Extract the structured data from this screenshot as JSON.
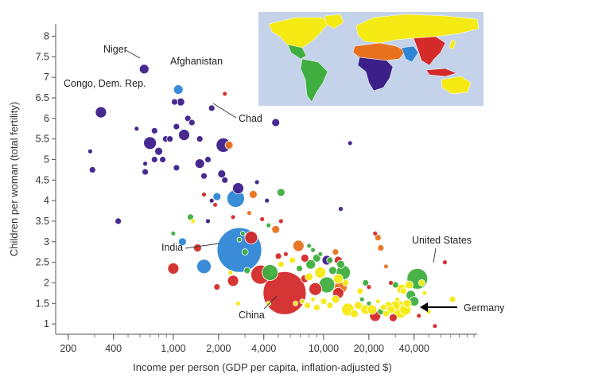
{
  "chart_data": {
    "type": "scatter",
    "title": "",
    "xlabel": "Income per person (GDP per capita, inflation-adjusted $)",
    "ylabel": "Children per woman (total fertility)",
    "xscale": "log",
    "xlim": [
      165,
      105000
    ],
    "ylim": [
      0.75,
      8.3
    ],
    "x_ticks": [
      200,
      400,
      1000,
      2000,
      4000,
      10000,
      20000,
      40000
    ],
    "x_tick_labels": [
      "200",
      "400",
      "1,000",
      "2,000",
      "4,000",
      "10,000",
      "20,000",
      "40,000"
    ],
    "y_ticks": [
      1,
      1.5,
      2,
      2.5,
      3,
      3.5,
      4,
      4.5,
      5,
      5.5,
      6,
      6.5,
      7,
      7.5,
      8
    ],
    "y_tick_labels": [
      "1",
      "1.5",
      "2",
      "2.5",
      "3",
      "3.5",
      "4",
      "4.5",
      "5",
      "5.5",
      "6",
      "6.5",
      "7",
      "7.5",
      "8"
    ],
    "grid": false,
    "legend": "inset world map (top-right) colors countries by region",
    "region_colors": {
      "purple": "#3d1f8a",
      "blue": "#2f86d6",
      "red": "#d42a2a",
      "orange": "#e8711e",
      "green": "#3fae3f",
      "yellow": "#f5ea14"
    },
    "map_colors": {
      "ocean": "#c4d3ea"
    },
    "annotations": [
      {
        "text": "Niger",
        "x": 640,
        "y": 7.2
      },
      {
        "text": "Afghanistan",
        "x": 1080,
        "y": 6.7
      },
      {
        "text": "Congo, Dem. Rep.",
        "x": 330,
        "y": 6.15
      },
      {
        "text": "Chad",
        "x": 1800,
        "y": 6.25
      },
      {
        "text": "India",
        "x": 2750,
        "y": 2.8
      },
      {
        "text": "China",
        "x": 5500,
        "y": 1.75
      },
      {
        "text": "United States",
        "x": 42000,
        "y": 2.1
      },
      {
        "text": "Germany",
        "x": 35000,
        "y": 1.35
      }
    ],
    "points": [
      {
        "x": 640,
        "y": 7.2,
        "r": 6,
        "c": "purple"
      },
      {
        "x": 1080,
        "y": 6.7,
        "r": 6,
        "c": "blue"
      },
      {
        "x": 330,
        "y": 6.15,
        "r": 7,
        "c": "purple"
      },
      {
        "x": 1800,
        "y": 6.25,
        "r": 4,
        "c": "purple"
      },
      {
        "x": 4800,
        "y": 5.9,
        "r": 5,
        "c": "purple"
      },
      {
        "x": 2200,
        "y": 6.6,
        "r": 3,
        "c": "red"
      },
      {
        "x": 1020,
        "y": 6.4,
        "r": 4,
        "c": "purple"
      },
      {
        "x": 1120,
        "y": 6.4,
        "r": 5,
        "c": "purple"
      },
      {
        "x": 1250,
        "y": 6.0,
        "r": 4,
        "c": "purple"
      },
      {
        "x": 1330,
        "y": 5.9,
        "r": 4,
        "c": "purple"
      },
      {
        "x": 1050,
        "y": 5.8,
        "r": 4,
        "c": "purple"
      },
      {
        "x": 570,
        "y": 5.75,
        "r": 3,
        "c": "purple"
      },
      {
        "x": 750,
        "y": 5.7,
        "r": 4,
        "c": "purple"
      },
      {
        "x": 700,
        "y": 5.4,
        "r": 8,
        "c": "purple"
      },
      {
        "x": 890,
        "y": 5.5,
        "r": 4,
        "c": "purple"
      },
      {
        "x": 950,
        "y": 5.5,
        "r": 4,
        "c": "purple"
      },
      {
        "x": 1180,
        "y": 5.6,
        "r": 7,
        "c": "purple"
      },
      {
        "x": 1500,
        "y": 5.5,
        "r": 4,
        "c": "purple"
      },
      {
        "x": 2150,
        "y": 5.35,
        "r": 9,
        "c": "purple"
      },
      {
        "x": 2350,
        "y": 5.35,
        "r": 5,
        "c": "orange"
      },
      {
        "x": 800,
        "y": 5.2,
        "r": 5,
        "c": "purple"
      },
      {
        "x": 750,
        "y": 5.0,
        "r": 4,
        "c": "purple"
      },
      {
        "x": 850,
        "y": 5.0,
        "r": 4,
        "c": "purple"
      },
      {
        "x": 650,
        "y": 4.9,
        "r": 3,
        "c": "purple"
      },
      {
        "x": 1500,
        "y": 4.9,
        "r": 6,
        "c": "purple"
      },
      {
        "x": 1700,
        "y": 5.0,
        "r": 4,
        "c": "purple"
      },
      {
        "x": 1050,
        "y": 4.8,
        "r": 4,
        "c": "purple"
      },
      {
        "x": 650,
        "y": 4.7,
        "r": 4,
        "c": "purple"
      },
      {
        "x": 1600,
        "y": 4.6,
        "r": 4,
        "c": "purple"
      },
      {
        "x": 2100,
        "y": 4.65,
        "r": 5,
        "c": "purple"
      },
      {
        "x": 2200,
        "y": 4.5,
        "r": 4,
        "c": "purple"
      },
      {
        "x": 280,
        "y": 5.2,
        "r": 3,
        "c": "purple"
      },
      {
        "x": 290,
        "y": 4.75,
        "r": 4,
        "c": "purple"
      },
      {
        "x": 2700,
        "y": 4.3,
        "r": 7,
        "c": "purple"
      },
      {
        "x": 2600,
        "y": 4.05,
        "r": 11,
        "c": "blue"
      },
      {
        "x": 1950,
        "y": 4.1,
        "r": 5,
        "c": "blue"
      },
      {
        "x": 3600,
        "y": 4.45,
        "r": 3,
        "c": "purple"
      },
      {
        "x": 3400,
        "y": 4.15,
        "r": 5,
        "c": "orange"
      },
      {
        "x": 1800,
        "y": 4.0,
        "r": 3,
        "c": "purple"
      },
      {
        "x": 1600,
        "y": 4.15,
        "r": 3,
        "c": "red"
      },
      {
        "x": 4200,
        "y": 4.0,
        "r": 3,
        "c": "purple"
      },
      {
        "x": 5200,
        "y": 4.2,
        "r": 5,
        "c": "green"
      },
      {
        "x": 1000,
        "y": 3.2,
        "r": 3,
        "c": "green"
      },
      {
        "x": 1300,
        "y": 3.6,
        "r": 4,
        "c": "green"
      },
      {
        "x": 1350,
        "y": 3.5,
        "r": 3,
        "c": "yellow"
      },
      {
        "x": 430,
        "y": 3.5,
        "r": 4,
        "c": "purple"
      },
      {
        "x": 1700,
        "y": 3.5,
        "r": 3,
        "c": "purple"
      },
      {
        "x": 1900,
        "y": 3.9,
        "r": 3,
        "c": "red"
      },
      {
        "x": 2500,
        "y": 3.6,
        "r": 3,
        "c": "red"
      },
      {
        "x": 3200,
        "y": 3.7,
        "r": 3,
        "c": "orange"
      },
      {
        "x": 3900,
        "y": 3.55,
        "r": 3,
        "c": "red"
      },
      {
        "x": 4300,
        "y": 3.4,
        "r": 3,
        "c": "green"
      },
      {
        "x": 4800,
        "y": 3.3,
        "r": 5,
        "c": "orange"
      },
      {
        "x": 5200,
        "y": 3.5,
        "r": 3,
        "c": "red"
      },
      {
        "x": 2900,
        "y": 3.2,
        "r": 3,
        "c": "green"
      },
      {
        "x": 13000,
        "y": 3.8,
        "r": 3,
        "c": "purple"
      },
      {
        "x": 15000,
        "y": 5.4,
        "r": 3,
        "c": "purple"
      },
      {
        "x": 1150,
        "y": 3.0,
        "r": 5,
        "c": "blue"
      },
      {
        "x": 2750,
        "y": 2.8,
        "r": 28,
        "c": "blue"
      },
      {
        "x": 1450,
        "y": 2.85,
        "r": 5,
        "c": "red"
      },
      {
        "x": 3300,
        "y": 3.1,
        "r": 8,
        "c": "red"
      },
      {
        "x": 6800,
        "y": 2.9,
        "r": 7,
        "c": "orange"
      },
      {
        "x": 8000,
        "y": 2.9,
        "r": 3,
        "c": "green"
      },
      {
        "x": 8500,
        "y": 2.8,
        "r": 3,
        "c": "green"
      },
      {
        "x": 9500,
        "y": 2.7,
        "r": 3,
        "c": "green"
      },
      {
        "x": 3000,
        "y": 2.75,
        "r": 4,
        "c": "green"
      },
      {
        "x": 12000,
        "y": 2.75,
        "r": 4,
        "c": "orange"
      },
      {
        "x": 11000,
        "y": 2.55,
        "r": 4,
        "c": "green"
      },
      {
        "x": 10500,
        "y": 2.55,
        "r": 6,
        "c": "purple"
      },
      {
        "x": 9000,
        "y": 2.6,
        "r": 5,
        "c": "green"
      },
      {
        "x": 8200,
        "y": 2.45,
        "r": 6,
        "c": "green"
      },
      {
        "x": 7500,
        "y": 2.6,
        "r": 5,
        "c": "red"
      },
      {
        "x": 6200,
        "y": 2.55,
        "r": 4,
        "c": "yellow"
      },
      {
        "x": 5000,
        "y": 2.65,
        "r": 4,
        "c": "red"
      },
      {
        "x": 5600,
        "y": 2.7,
        "r": 3,
        "c": "red"
      },
      {
        "x": 12500,
        "y": 2.55,
        "r": 5,
        "c": "red"
      },
      {
        "x": 13000,
        "y": 2.45,
        "r": 5,
        "c": "green"
      },
      {
        "x": 13500,
        "y": 2.25,
        "r": 9,
        "c": "green"
      },
      {
        "x": 11500,
        "y": 2.3,
        "r": 5,
        "c": "green"
      },
      {
        "x": 12500,
        "y": 2.1,
        "r": 6,
        "c": "yellow"
      },
      {
        "x": 9500,
        "y": 2.25,
        "r": 7,
        "c": "yellow"
      },
      {
        "x": 10500,
        "y": 1.95,
        "r": 10,
        "c": "green"
      },
      {
        "x": 12500,
        "y": 1.75,
        "r": 7,
        "c": "red"
      },
      {
        "x": 13000,
        "y": 1.9,
        "r": 8,
        "c": "orange"
      },
      {
        "x": 14000,
        "y": 2.0,
        "r": 4,
        "c": "yellow"
      },
      {
        "x": 8800,
        "y": 1.85,
        "r": 8,
        "c": "red"
      },
      {
        "x": 7500,
        "y": 2.1,
        "r": 5,
        "c": "red"
      },
      {
        "x": 8000,
        "y": 2.15,
        "r": 5,
        "c": "yellow"
      },
      {
        "x": 6900,
        "y": 2.35,
        "r": 4,
        "c": "green"
      },
      {
        "x": 5200,
        "y": 2.45,
        "r": 4,
        "c": "yellow"
      },
      {
        "x": 3100,
        "y": 2.3,
        "r": 4,
        "c": "green"
      },
      {
        "x": 3800,
        "y": 2.2,
        "r": 12,
        "c": "red"
      },
      {
        "x": 4400,
        "y": 2.25,
        "r": 10,
        "c": "green"
      },
      {
        "x": 2500,
        "y": 2.05,
        "r": 7,
        "c": "red"
      },
      {
        "x": 1600,
        "y": 2.4,
        "r": 9,
        "c": "blue"
      },
      {
        "x": 1000,
        "y": 2.35,
        "r": 7,
        "c": "red"
      },
      {
        "x": 1950,
        "y": 1.9,
        "r": 4,
        "c": "red"
      },
      {
        "x": 2700,
        "y": 1.5,
        "r": 3,
        "c": "yellow"
      },
      {
        "x": 5500,
        "y": 1.75,
        "r": 27,
        "c": "red"
      },
      {
        "x": 6500,
        "y": 1.5,
        "r": 3,
        "c": "yellow"
      },
      {
        "x": 7200,
        "y": 1.55,
        "r": 3,
        "c": "yellow"
      },
      {
        "x": 7800,
        "y": 1.45,
        "r": 4,
        "c": "yellow"
      },
      {
        "x": 8500,
        "y": 1.6,
        "r": 3,
        "c": "yellow"
      },
      {
        "x": 9000,
        "y": 1.4,
        "r": 4,
        "c": "yellow"
      },
      {
        "x": 10000,
        "y": 1.55,
        "r": 4,
        "c": "yellow"
      },
      {
        "x": 11000,
        "y": 1.45,
        "r": 4,
        "c": "yellow"
      },
      {
        "x": 12000,
        "y": 1.6,
        "r": 5,
        "c": "yellow"
      },
      {
        "x": 14500,
        "y": 1.35,
        "r": 8,
        "c": "yellow"
      },
      {
        "x": 16000,
        "y": 1.25,
        "r": 5,
        "c": "yellow"
      },
      {
        "x": 17000,
        "y": 1.45,
        "r": 5,
        "c": "yellow"
      },
      {
        "x": 17500,
        "y": 1.8,
        "r": 4,
        "c": "yellow"
      },
      {
        "x": 18000,
        "y": 1.6,
        "r": 3,
        "c": "green"
      },
      {
        "x": 19000,
        "y": 1.35,
        "r": 6,
        "c": "yellow"
      },
      {
        "x": 20000,
        "y": 1.5,
        "r": 3,
        "c": "green"
      },
      {
        "x": 21000,
        "y": 1.35,
        "r": 6,
        "c": "yellow"
      },
      {
        "x": 22000,
        "y": 1.2,
        "r": 7,
        "c": "red"
      },
      {
        "x": 23000,
        "y": 1.55,
        "r": 3,
        "c": "yellow"
      },
      {
        "x": 24000,
        "y": 1.3,
        "r": 4,
        "c": "green"
      },
      {
        "x": 25000,
        "y": 1.4,
        "r": 4,
        "c": "yellow"
      },
      {
        "x": 26000,
        "y": 1.25,
        "r": 4,
        "c": "yellow"
      },
      {
        "x": 27000,
        "y": 1.45,
        "r": 5,
        "c": "yellow"
      },
      {
        "x": 28000,
        "y": 1.35,
        "r": 5,
        "c": "yellow"
      },
      {
        "x": 29000,
        "y": 1.15,
        "r": 5,
        "c": "red"
      },
      {
        "x": 30000,
        "y": 1.45,
        "r": 6,
        "c": "yellow"
      },
      {
        "x": 31000,
        "y": 1.6,
        "r": 3,
        "c": "yellow"
      },
      {
        "x": 32000,
        "y": 1.35,
        "r": 11,
        "c": "yellow"
      },
      {
        "x": 33000,
        "y": 1.85,
        "r": 6,
        "c": "yellow"
      },
      {
        "x": 34000,
        "y": 1.8,
        "r": 4,
        "c": "yellow"
      },
      {
        "x": 35000,
        "y": 1.35,
        "r": 7,
        "c": "yellow"
      },
      {
        "x": 36000,
        "y": 1.5,
        "r": 5,
        "c": "yellow"
      },
      {
        "x": 37000,
        "y": 1.95,
        "r": 5,
        "c": "yellow"
      },
      {
        "x": 38000,
        "y": 1.7,
        "r": 6,
        "c": "green"
      },
      {
        "x": 40000,
        "y": 1.55,
        "r": 6,
        "c": "green"
      },
      {
        "x": 42000,
        "y": 2.1,
        "r": 13,
        "c": "green"
      },
      {
        "x": 45000,
        "y": 2.0,
        "r": 4,
        "c": "yellow"
      },
      {
        "x": 47000,
        "y": 1.75,
        "r": 3,
        "c": "yellow"
      },
      {
        "x": 43000,
        "y": 1.2,
        "r": 3,
        "c": "red"
      },
      {
        "x": 50000,
        "y": 1.3,
        "r": 3,
        "c": "yellow"
      },
      {
        "x": 55000,
        "y": 0.95,
        "r": 3,
        "c": "red"
      },
      {
        "x": 64000,
        "y": 2.5,
        "r": 3,
        "c": "red"
      },
      {
        "x": 72000,
        "y": 1.6,
        "r": 4,
        "c": "yellow"
      },
      {
        "x": 24000,
        "y": 2.85,
        "r": 4,
        "c": "orange"
      },
      {
        "x": 26000,
        "y": 2.4,
        "r": 3,
        "c": "orange"
      },
      {
        "x": 28000,
        "y": 2.0,
        "r": 3,
        "c": "red"
      },
      {
        "x": 30000,
        "y": 1.95,
        "r": 4,
        "c": "green"
      },
      {
        "x": 22000,
        "y": 3.2,
        "r": 3,
        "c": "red"
      },
      {
        "x": 23000,
        "y": 3.1,
        "r": 4,
        "c": "orange"
      },
      {
        "x": 19000,
        "y": 2.0,
        "r": 4,
        "c": "green"
      },
      {
        "x": 20000,
        "y": 1.9,
        "r": 3,
        "c": "red"
      },
      {
        "x": 4300,
        "y": 1.5,
        "r": 3,
        "c": "yellow"
      },
      {
        "x": 2400,
        "y": 2.25,
        "r": 3,
        "c": "yellow"
      },
      {
        "x": 2750,
        "y": 3.05,
        "r": 3,
        "c": "green"
      }
    ]
  }
}
